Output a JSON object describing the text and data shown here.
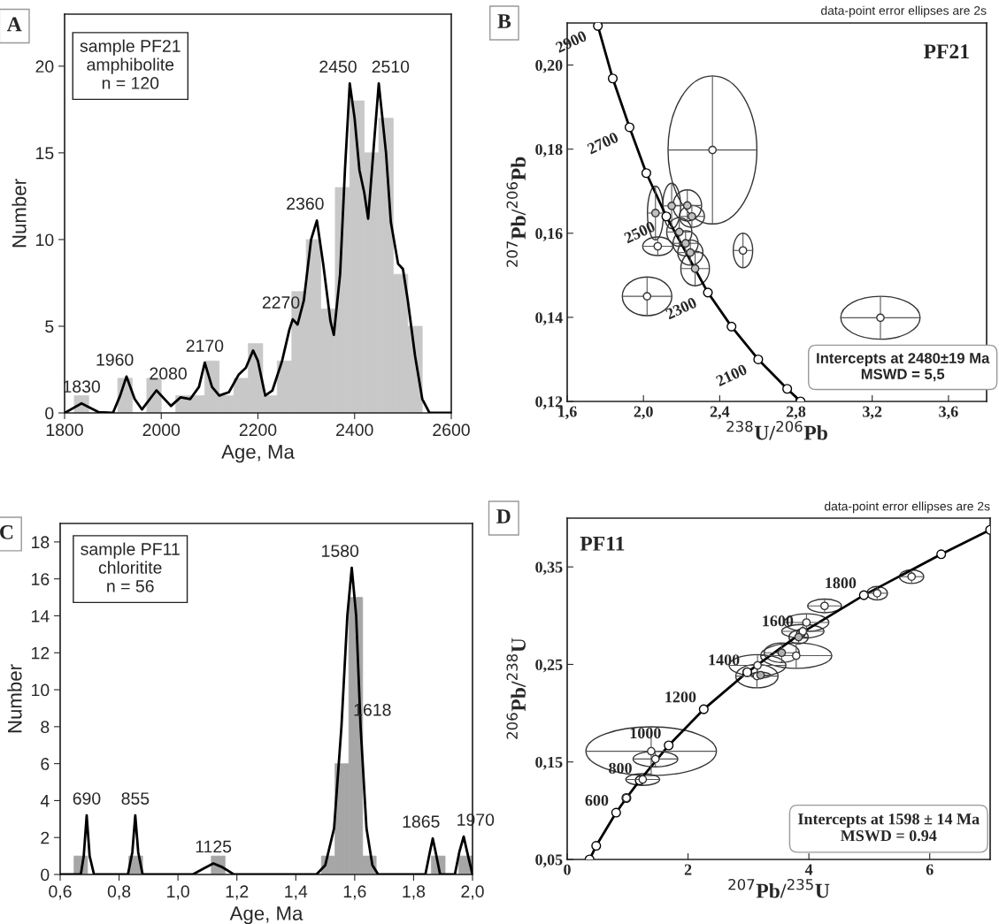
{
  "chart_data": [
    {
      "type": "histogram",
      "xlabel": "Age, Ma",
      "ylabel": "Number",
      "color": "#c8c8c8",
      "bins": [
        1820,
        1850,
        1880,
        1910,
        1940,
        1970,
        2000,
        2030,
        2060,
        2090,
        2120,
        2150,
        2180,
        2210,
        2240,
        2270,
        2300,
        2330,
        2360,
        2390,
        2420,
        2450,
        2480,
        2510,
        2540
      ],
      "values": [
        1,
        0,
        0,
        2,
        0,
        2,
        0,
        1,
        1,
        3,
        1,
        2,
        4,
        1,
        3,
        7,
        10,
        6,
        13,
        18,
        15,
        17,
        8,
        5
      ],
      "series": [
        {
          "type": "line",
          "color": "#000000",
          "x": [
            1800,
            1835,
            1870,
            1900,
            1915,
            1928,
            1945,
            1960,
            1990,
            2020,
            2040,
            2060,
            2078,
            2090,
            2105,
            2120,
            2140,
            2160,
            2175,
            2190,
            2200,
            2215,
            2230,
            2250,
            2265,
            2272,
            2282,
            2295,
            2310,
            2322,
            2335,
            2350,
            2357,
            2370,
            2380,
            2390,
            2400,
            2410,
            2420,
            2428,
            2440,
            2450,
            2465,
            2475,
            2490,
            2500,
            2510,
            2525,
            2540,
            2555,
            2600
          ],
          "values": [
            0,
            0.55,
            0.05,
            0,
            1.0,
            2.1,
            0.8,
            0.2,
            1.3,
            0.4,
            0.9,
            0.8,
            1.5,
            2.9,
            1.5,
            1.0,
            1.2,
            2.2,
            2.6,
            3.6,
            3.0,
            1.0,
            1.3,
            3.0,
            4.8,
            5.4,
            5.1,
            6.5,
            10.0,
            11.1,
            8.6,
            5.3,
            4.5,
            8.0,
            14.0,
            19.0,
            17.0,
            14.0,
            12.7,
            11.2,
            15.5,
            19.0,
            15.0,
            11.0,
            8.6,
            8.3,
            6.5,
            3.3,
            0.8,
            0,
            0
          ]
        }
      ],
      "xlim": [
        1800,
        2600
      ],
      "xticks": [
        1800,
        2000,
        2200,
        2400,
        2600
      ],
      "ylim": [
        0,
        23
      ],
      "yticks": [
        0,
        5,
        10,
        15,
        20
      ],
      "annotations": [
        "A",
        "sample PF21\namphibolite\nn = 120",
        {
          "text": "1830",
          "x": 1835,
          "y": 0.55
        },
        {
          "text": "1960",
          "x": 1928,
          "y": 2.1
        },
        {
          "text": "2080",
          "x": 1990,
          "y": 1.3
        },
        {
          "text": "2170",
          "x": 2090,
          "y": 2.9
        },
        {
          "text": "2270",
          "x": 2272,
          "y": 5.4
        },
        {
          "text": "2360",
          "x": 2322,
          "y": 11.1
        },
        {
          "text": "2450",
          "x": 2390,
          "y": 19.0
        },
        {
          "text": "2510",
          "x": 2450,
          "y": 19.0
        }
      ]
    },
    {
      "type": "scatter",
      "xlabel": "$^{238}$U/$^{206}$Pb",
      "ylabel": "$^{207}$Pb/$^{206}$Pb",
      "series": [
        {
          "type": "line",
          "color": "#000000",
          "marker": "circle",
          "x": [
            1.761,
            1.839,
            1.927,
            2.015,
            2.12,
            2.338,
            2.462,
            2.602,
            2.754,
            2.824
          ],
          "values": [
            0.2093,
            0.1968,
            0.1852,
            0.1743,
            0.164,
            0.1459,
            0.1378,
            0.13,
            0.123,
            0.12
          ]
        },
        {
          "type": "scatter",
          "color": "#ffffff",
          "x": [
            2.362,
            2.522,
            2.075,
            2.019,
            3.243
          ],
          "values": [
            0.1798,
            0.1559,
            0.1569,
            0.145,
            0.1399
          ],
          "xerrors": [
            0.233,
            0.051,
            0.079,
            0.13,
            0.208
          ],
          "errors": [
            0.0176,
            0.0041,
            0.0022,
            0.0046,
            0.0051
          ]
        },
        {
          "type": "scatter",
          "color": "#c0c0c0",
          "x": [
            2.063,
            2.148,
            2.254,
            2.271,
            2.221,
            2.188,
            2.23,
            2.246
          ],
          "values": [
            0.1648,
            0.1665,
            0.164,
            0.1516,
            0.1576,
            0.1603,
            0.1666,
            0.1554
          ],
          "xerrors": [
            0.042,
            0.047,
            0.066,
            0.075,
            0.066,
            0.066,
            0.075,
            0.066
          ],
          "errors": [
            0.0064,
            0.0054,
            0.0026,
            0.0041,
            0.003,
            0.0034,
            0.0037,
            0.003
          ]
        }
      ],
      "xlim": [
        1.6,
        3.8
      ],
      "xticks": [
        {
          "value": 1.6,
          "label": "1,6"
        },
        {
          "value": 2.0,
          "label": "2,0"
        },
        {
          "value": 2.4,
          "label": "2,4"
        },
        {
          "value": 2.8,
          "label": "2,8"
        },
        {
          "value": 3.2,
          "label": "3,2"
        },
        {
          "value": 3.6,
          "label": "3,6"
        }
      ],
      "ylim": [
        0.12,
        0.21
      ],
      "yticks": [
        {
          "value": 0.12,
          "label": "0,12"
        },
        {
          "value": 0.14,
          "label": "0,14"
        },
        {
          "value": 0.16,
          "label": "0,16"
        },
        {
          "value": 0.18,
          "label": "0,18"
        },
        {
          "value": 0.2,
          "label": "0,20"
        }
      ],
      "annotations": [
        "B",
        "data-point error ellipses are 2s",
        "PF21",
        "Intercepts at 2480±19 Ma\nMSWD = 5,5",
        {
          "text": "2900",
          "x": 1.761,
          "y": 0.2093
        },
        {
          "text": "2700",
          "x": 1.927,
          "y": 0.1852
        },
        {
          "text": "2500",
          "x": 2.12,
          "y": 0.164
        },
        {
          "text": "2300",
          "x": 2.338,
          "y": 0.1459
        },
        {
          "text": "2100",
          "x": 2.602,
          "y": 0.13
        }
      ]
    },
    {
      "type": "histogram",
      "xlabel": "Age, Ma",
      "ylabel": "Number",
      "color": "#a6a6a6",
      "bins": [
        0.6,
        0.647,
        0.693,
        0.74,
        0.787,
        0.833,
        0.88,
        0.927,
        0.973,
        1.02,
        1.067,
        1.113,
        1.16,
        1.207,
        1.253,
        1.3,
        1.347,
        1.393,
        1.44,
        1.487,
        1.533,
        1.58,
        1.627,
        1.673,
        1.72,
        1.767,
        1.813,
        1.86,
        1.907,
        1.953,
        2.0
      ],
      "values": [
        0,
        1,
        0,
        0,
        0,
        1,
        0,
        0,
        0,
        0,
        0,
        1,
        0,
        0,
        0,
        0,
        0,
        0,
        0,
        1,
        6,
        15,
        1,
        0,
        0,
        0,
        0,
        1,
        0,
        1
      ],
      "series": [
        {
          "type": "line",
          "color": "#000000",
          "x": [
            0.6,
            0.67,
            0.68,
            0.69,
            0.7,
            0.715,
            0.83,
            0.845,
            0.855,
            0.865,
            0.88,
            1.05,
            1.09,
            1.12,
            1.15,
            1.19,
            1.47,
            1.5,
            1.53,
            1.555,
            1.575,
            1.59,
            1.605,
            1.62,
            1.64,
            1.66,
            1.68,
            1.84,
            1.855,
            1.865,
            1.875,
            1.89,
            1.94,
            1.955,
            1.97,
            1.985,
            2.0
          ],
          "values": [
            0,
            0,
            1.0,
            3.2,
            1.0,
            0,
            0,
            1.2,
            3.2,
            1.2,
            0,
            0,
            0.35,
            0.6,
            0.4,
            0,
            0,
            0.5,
            2.5,
            8,
            14,
            16.6,
            14,
            8,
            2.5,
            0.5,
            0,
            0,
            1.2,
            1.95,
            1.2,
            0,
            0,
            1.2,
            2.05,
            1.0,
            0
          ]
        }
      ],
      "xlim": [
        0.6,
        2.0
      ],
      "xticks": [
        {
          "value": 0.6,
          "label": "0,6"
        },
        {
          "value": 0.8,
          "label": "0,8"
        },
        {
          "value": 1.0,
          "label": "1,0"
        },
        {
          "value": 1.2,
          "label": "1,2"
        },
        {
          "value": 1.4,
          "label": "1,4"
        },
        {
          "value": 1.6,
          "label": "1,6"
        },
        {
          "value": 1.8,
          "label": "1,8"
        },
        {
          "value": 2.0,
          "label": "2,0"
        }
      ],
      "ylim": [
        0,
        19
      ],
      "yticks": [
        0,
        2,
        4,
        6,
        8,
        10,
        12,
        14,
        16,
        18
      ],
      "annotations": [
        "C",
        "sample PF11\nchloritite\nn = 56",
        {
          "text": "690",
          "x": 0.69,
          "y": 3.2
        },
        {
          "text": "855",
          "x": 0.855,
          "y": 3.2
        },
        {
          "text": "1125",
          "x": 1.12,
          "y": 0.6
        },
        {
          "text": "1580",
          "x": 1.59,
          "y": 16.6
        },
        {
          "text": "1618",
          "x": 1.62,
          "y": 8
        },
        {
          "text": "1865",
          "x": 1.865,
          "y": 1.95
        },
        {
          "text": "1970",
          "x": 1.97,
          "y": 2.05
        }
      ]
    },
    {
      "type": "scatter",
      "xlabel": "$^{207}$Pb/$^{235}$U",
      "ylabel": "$^{206}$Pb/$^{238}$U",
      "series": [
        {
          "type": "line",
          "color": "#000000",
          "marker": "circle",
          "x": [
            0.37,
            0.48,
            0.81,
            0.98,
            1.2,
            1.68,
            2.26,
            2.98,
            3.87,
            4.91,
            6.19,
            7.0
          ],
          "values": [
            0.05,
            0.064,
            0.098,
            0.113,
            0.131,
            0.167,
            0.204,
            0.242,
            0.282,
            0.321,
            0.363,
            0.388
          ]
        },
        {
          "type": "scatter",
          "color": "#ffffff",
          "x": [
            1.39,
            1.46,
            1.25,
            0.98,
            3.14,
            3.15,
            3.79,
            4.26,
            3.96,
            3.9,
            5.13,
            5.7
          ],
          "values": [
            0.161,
            0.153,
            0.132,
            0.113,
            0.238,
            0.249,
            0.259,
            0.31,
            0.293,
            0.284,
            0.323,
            0.34
          ],
          "xerrors": [
            1.08,
            0.37,
            0.28,
            0.05,
            0.35,
            0.47,
            0.59,
            0.28,
            0.37,
            0.35,
            0.17,
            0.2
          ],
          "errors": [
            0.025,
            0.008,
            0.006,
            0.003,
            0.012,
            0.011,
            0.013,
            0.007,
            0.009,
            0.007,
            0.007,
            0.007
          ]
        },
        {
          "type": "scatter",
          "color": "#b0b0b0",
          "x": [
            3.55,
            3.83,
            3.2
          ],
          "values": [
            0.262,
            0.278,
            0.239
          ],
          "xerrors": [
            0.29,
            0.16,
            0.16
          ],
          "errors": [
            0.01,
            0.007,
            0.003
          ]
        }
      ],
      "xlim": [
        0,
        7
      ],
      "xticks": [
        0,
        2,
        4,
        6
      ],
      "ylim": [
        0.05,
        0.4
      ],
      "yticks": [
        {
          "value": 0.05,
          "label": "0,05"
        },
        {
          "value": 0.15,
          "label": "0,15"
        },
        {
          "value": 0.25,
          "label": "0,25"
        },
        {
          "value": 0.35,
          "label": "0,35"
        }
      ],
      "annotations": [
        "D",
        "data-point error ellipses are 2s",
        "PF11",
        "Intercepts at 1598 ± 14 Ma\nMSWD = 0.94",
        {
          "text": "600",
          "x": 0.81,
          "y": 0.098
        },
        {
          "text": "800",
          "x": 1.2,
          "y": 0.131
        },
        {
          "text": "1000",
          "x": 1.68,
          "y": 0.167
        },
        {
          "text": "1200",
          "x": 2.26,
          "y": 0.204
        },
        {
          "text": "1400",
          "x": 2.98,
          "y": 0.242
        },
        {
          "text": "1600",
          "x": 3.87,
          "y": 0.282
        },
        {
          "text": "1800",
          "x": 4.91,
          "y": 0.321
        }
      ]
    }
  ]
}
